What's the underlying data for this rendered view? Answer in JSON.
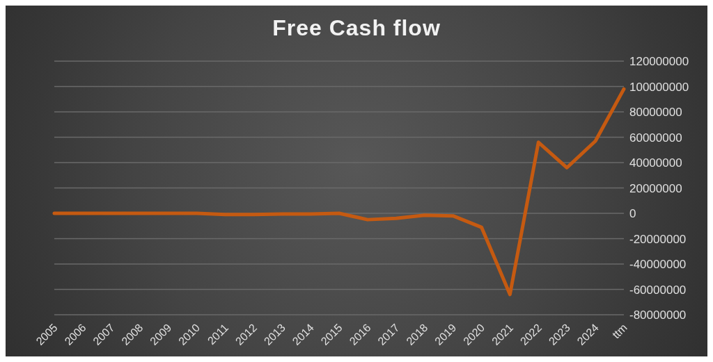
{
  "chart_data": {
    "type": "line",
    "title": "Free Cash flow",
    "categories": [
      "2005",
      "2006",
      "2007",
      "2008",
      "2009",
      "2010",
      "2011",
      "2012",
      "2013",
      "2014",
      "2015",
      "2016",
      "2017",
      "2018",
      "2019",
      "2020",
      "2021",
      "2022",
      "2023",
      "2024",
      "ttm"
    ],
    "series": [
      {
        "color": "#c55a11",
        "values": [
          0,
          0,
          0,
          0,
          0,
          0,
          -1000000,
          -1000000,
          -500000,
          -500000,
          0,
          -5000000,
          -4000000,
          -1500000,
          -2000000,
          -11000000,
          -64000000,
          56000000,
          36000000,
          57000000,
          98000000
        ]
      }
    ],
    "ylim": [
      -80000000,
      120000000
    ],
    "yticks": [
      -80000000,
      -60000000,
      -40000000,
      -20000000,
      0,
      20000000,
      40000000,
      60000000,
      80000000,
      100000000,
      120000000
    ],
    "grid": "y",
    "marker": "none",
    "line_style": "solid",
    "legend": false
  }
}
